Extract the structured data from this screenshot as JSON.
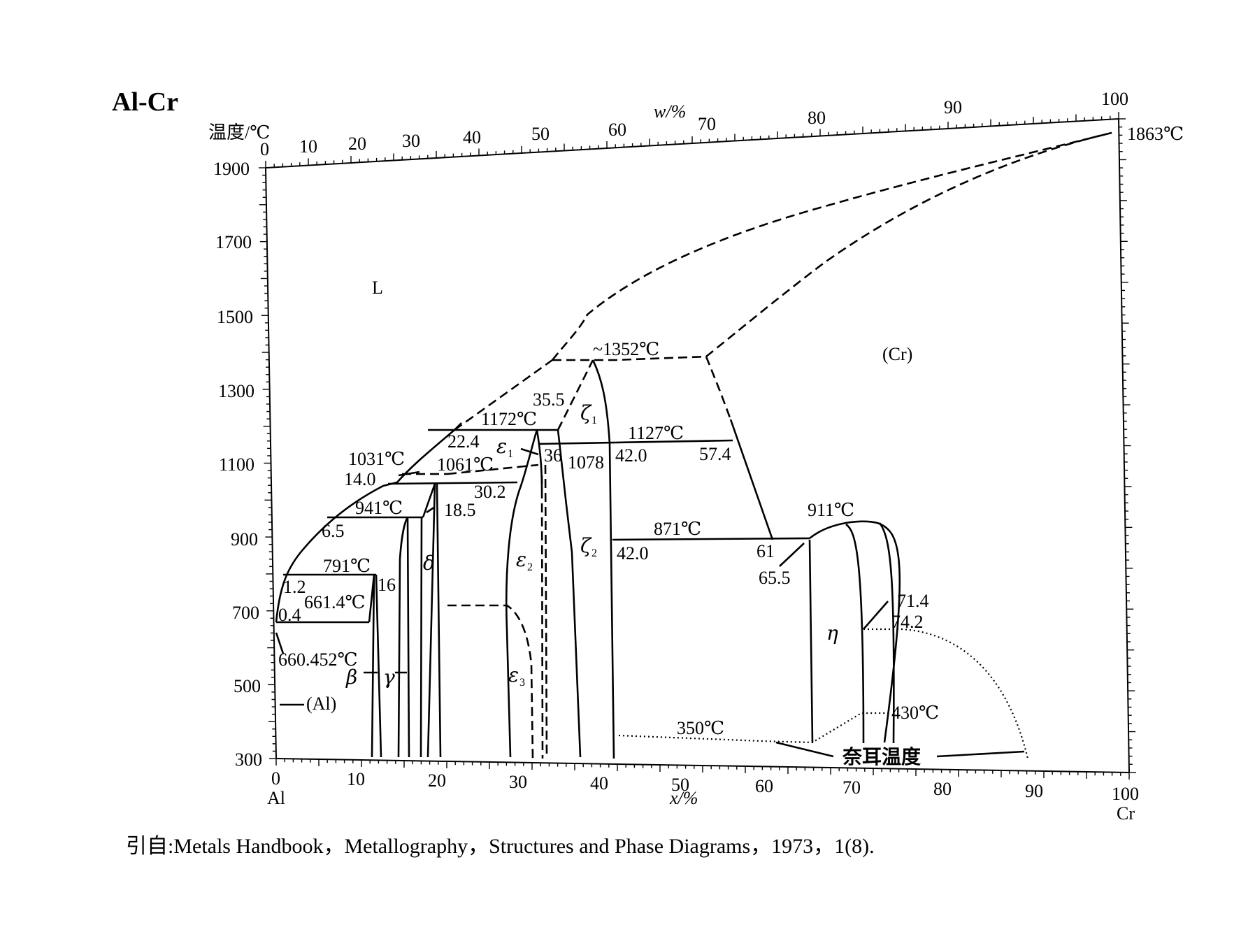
{
  "title": "Al-Cr",
  "y_axis_label": "温度/℃",
  "top_axis_label": "w/%",
  "bottom_axis_label": "x/%",
  "y_ticks": [
    "1900",
    "1700",
    "1500",
    "1300",
    "1100",
    "900",
    "700",
    "500",
    "300"
  ],
  "bottom_ticks": [
    "0",
    "10",
    "20",
    "30",
    "40",
    "50",
    "60",
    "70",
    "80",
    "90",
    "100"
  ],
  "top_ticks": [
    "0",
    "10",
    "20",
    "30",
    "40",
    "50",
    "60",
    "70",
    "80",
    "90",
    "100"
  ],
  "left_element": "Al",
  "right_element": "Cr",
  "phase_labels": {
    "liquid": "L",
    "cr": "(Cr)",
    "al": "(Al)",
    "beta": "β",
    "gamma": "γ",
    "delta": "δ",
    "eps1": "ε",
    "eps1_sub": "1",
    "eps2": "ε",
    "eps2_sub": "2",
    "eps3": "ε",
    "eps3_sub": "3",
    "zeta1": "ζ",
    "zeta1_sub": "1",
    "zeta2": "ζ",
    "zeta2_sub": "2",
    "eta": "η"
  },
  "annotations": {
    "t1863": "1863℃",
    "t1352": "~1352℃",
    "t1172": "1172℃",
    "t1127": "1127℃",
    "t1031": "1031℃",
    "t1061": "1061℃",
    "t941": "941℃",
    "t911": "911℃",
    "t871": "871℃",
    "t791": "791℃",
    "t661": "661.4℃",
    "t660": "660.452℃",
    "t430": "430℃",
    "t350": "350℃",
    "c35_5": "35.5",
    "c22_4": "22.4",
    "c36": "36",
    "c1078": "1078",
    "c42_0a": "42.0",
    "c57_4": "57.4",
    "c14_0": "14.0",
    "c30_2": "30.2",
    "c18_5": "18.5",
    "c6_5": "6.5",
    "c42_0b": "42.0",
    "c61": "61",
    "c65_5": "65.5",
    "c1_2": "1.2",
    "c16": "16",
    "c0_4": "0.4",
    "c71_4": "71.4",
    "c74_2": "74.2",
    "neel": "奈耳温度"
  },
  "citation": "引自:Metals Handbook，Metallography，Structures and Phase Diagrams，1973，1(8)."
}
